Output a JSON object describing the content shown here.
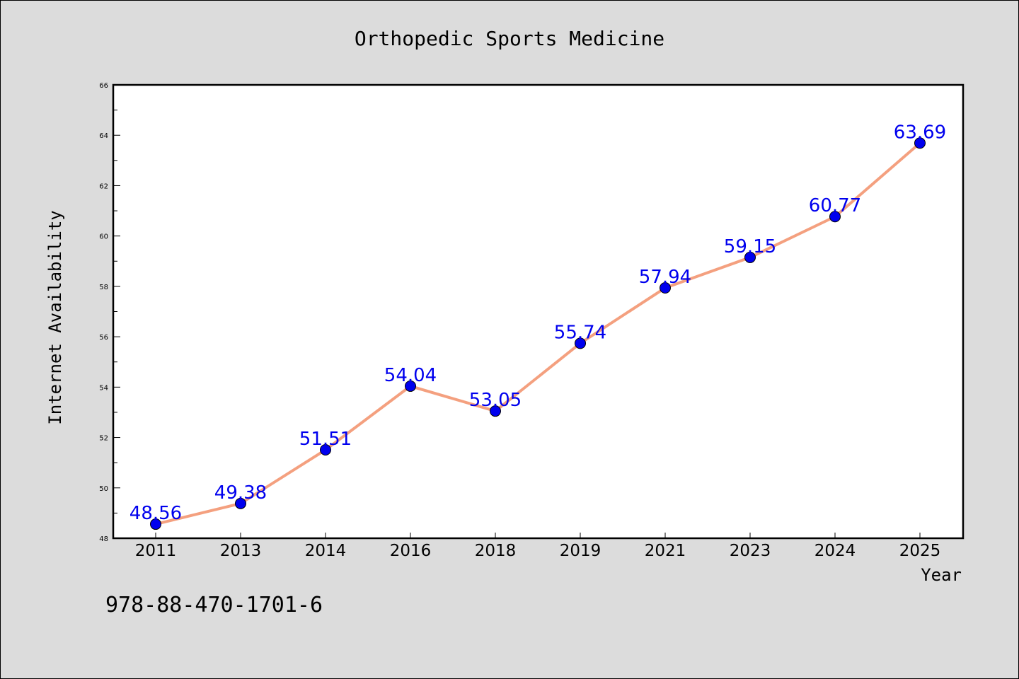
{
  "chart_data": {
    "type": "line",
    "title": "Orthopedic Sports Medicine",
    "xlabel": "Year",
    "ylabel": "Internet Availability",
    "categories": [
      "2011",
      "2013",
      "2014",
      "2016",
      "2018",
      "2019",
      "2021",
      "2023",
      "2024",
      "2025"
    ],
    "series": [
      {
        "values": [
          48.56,
          49.38,
          51.51,
          54.04,
          53.05,
          55.74,
          57.94,
          59.15,
          60.77,
          63.69
        ],
        "labels": [
          "48.56",
          "49.38",
          "51.51",
          "54.04",
          "53.05",
          "55.74",
          "57.94",
          "59.15",
          "60.77",
          "63.69"
        ]
      }
    ],
    "ylim": [
      48,
      66
    ],
    "yticks": [
      "48",
      "50",
      "52",
      "54",
      "56",
      "58",
      "60",
      "62",
      "64",
      "66"
    ],
    "grid": false,
    "line_color": "#f4a07f",
    "marker_color": "#0000ee",
    "label_color": "#0000ee"
  },
  "footer": {
    "isbn": "978-88-470-1701-6"
  }
}
